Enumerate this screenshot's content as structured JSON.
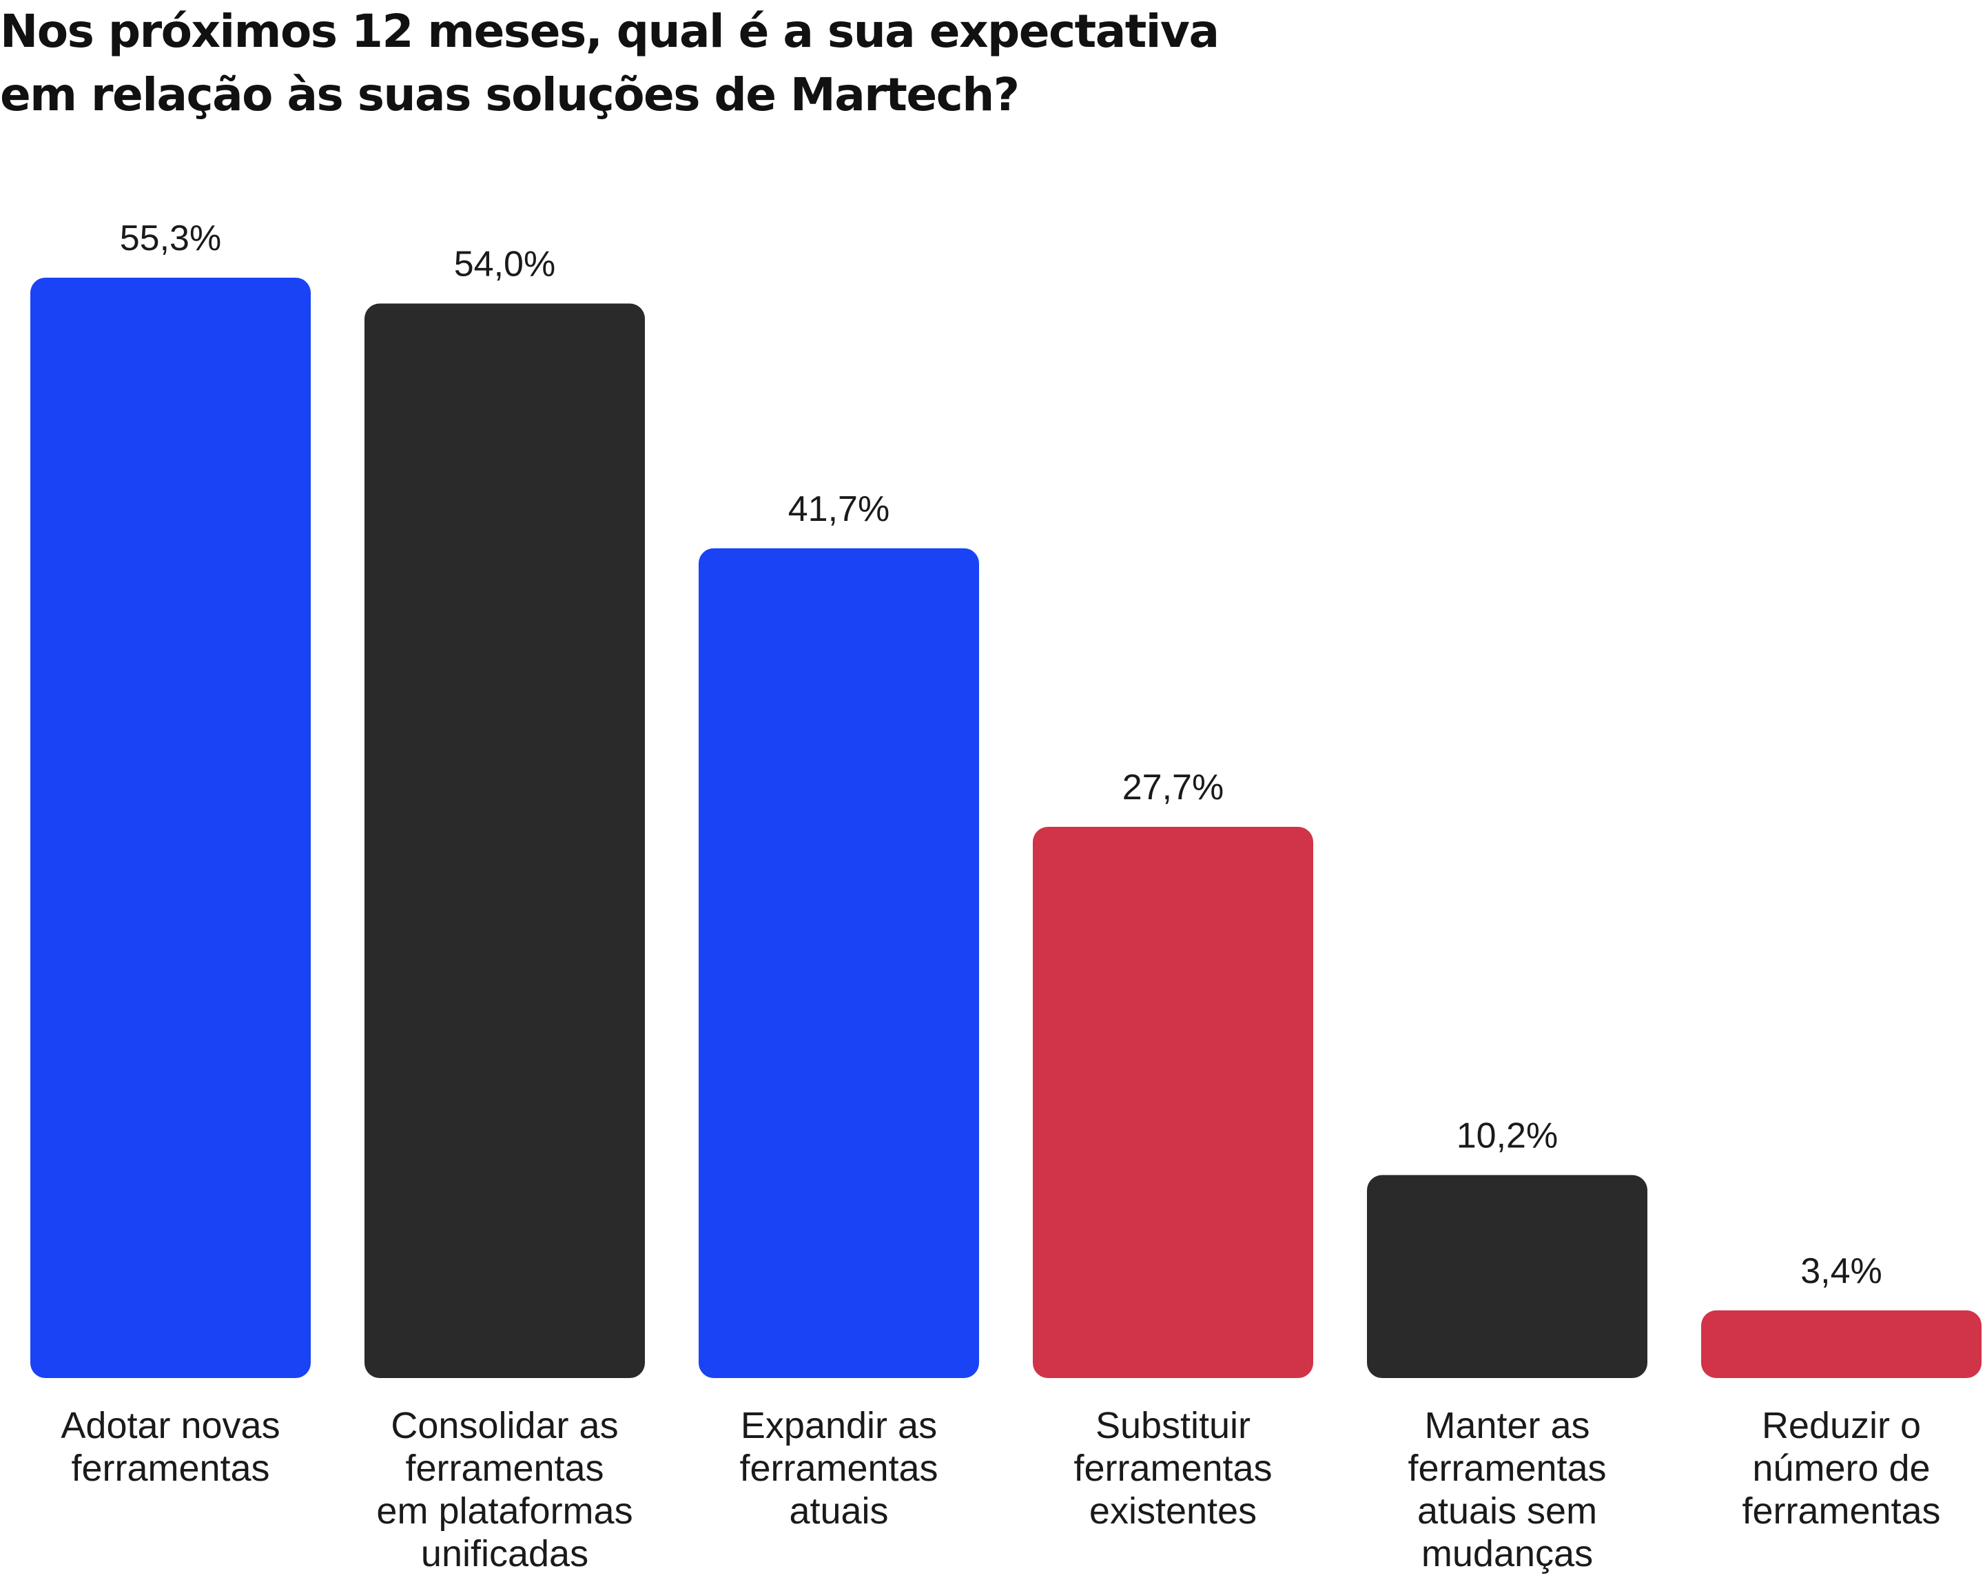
{
  "chart_data": {
    "type": "bar",
    "title_lines": [
      "Nos próximos 12 meses, qual é a sua expectativa",
      "em relação às suas soluções de Martech?"
    ],
    "categories": [
      [
        "Adotar novas",
        "ferramentas"
      ],
      [
        "Consolidar as",
        "ferramentas",
        "em plataformas",
        "unificadas"
      ],
      [
        "Expandir as",
        "ferramentas",
        "atuais"
      ],
      [
        "Substituir",
        "ferramentas",
        "existentes"
      ],
      [
        "Manter as",
        "ferramentas",
        "atuais sem",
        "mudanças"
      ],
      [
        "Reduzir o",
        "número de",
        "ferramentas"
      ]
    ],
    "values": [
      55.3,
      54.0,
      41.7,
      27.7,
      10.2,
      3.4
    ],
    "value_labels": [
      "55,3%",
      "54,0%",
      "41,7%",
      "27,7%",
      "10,2%",
      "3,4%"
    ],
    "colors": [
      "#1a43f5",
      "#2a2a2a",
      "#1a43f5",
      "#d13348",
      "#2a2a2a",
      "#d13348"
    ],
    "ylim": [
      0,
      55.3
    ],
    "grid": false,
    "legend": "none"
  }
}
